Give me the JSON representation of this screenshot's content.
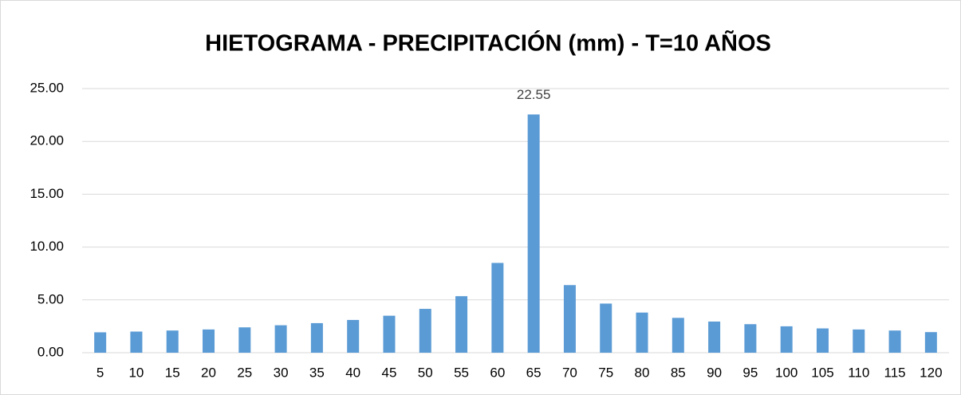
{
  "chart_data": {
    "type": "bar",
    "title": "HIETOGRAMA - PRECIPITACIÓN (mm) - T=10 AÑOS",
    "categories": [
      "5",
      "10",
      "15",
      "20",
      "25",
      "30",
      "35",
      "40",
      "45",
      "50",
      "55",
      "60",
      "65",
      "70",
      "75",
      "80",
      "85",
      "90",
      "95",
      "100",
      "105",
      "110",
      "115",
      "120"
    ],
    "values": [
      1.93,
      2.0,
      2.1,
      2.2,
      2.4,
      2.6,
      2.8,
      3.1,
      3.5,
      4.15,
      5.35,
      8.5,
      22.55,
      6.4,
      4.65,
      3.8,
      3.3,
      2.95,
      2.7,
      2.5,
      2.3,
      2.2,
      2.1,
      1.95
    ],
    "value_labels": [
      null,
      null,
      null,
      null,
      null,
      null,
      null,
      null,
      null,
      null,
      null,
      null,
      "22.55",
      null,
      null,
      null,
      null,
      null,
      null,
      null,
      null,
      null,
      null,
      null
    ],
    "color": "#5b9bd5",
    "ylim": [
      0,
      25
    ],
    "yticks": [
      {
        "value": 0,
        "label": "0.00"
      },
      {
        "value": 5,
        "label": "5.00"
      },
      {
        "value": 10,
        "label": "10.00"
      },
      {
        "value": 15,
        "label": "15.00"
      },
      {
        "value": 20,
        "label": "20.00"
      },
      {
        "value": 25,
        "label": "25.00"
      }
    ],
    "grid": true
  }
}
